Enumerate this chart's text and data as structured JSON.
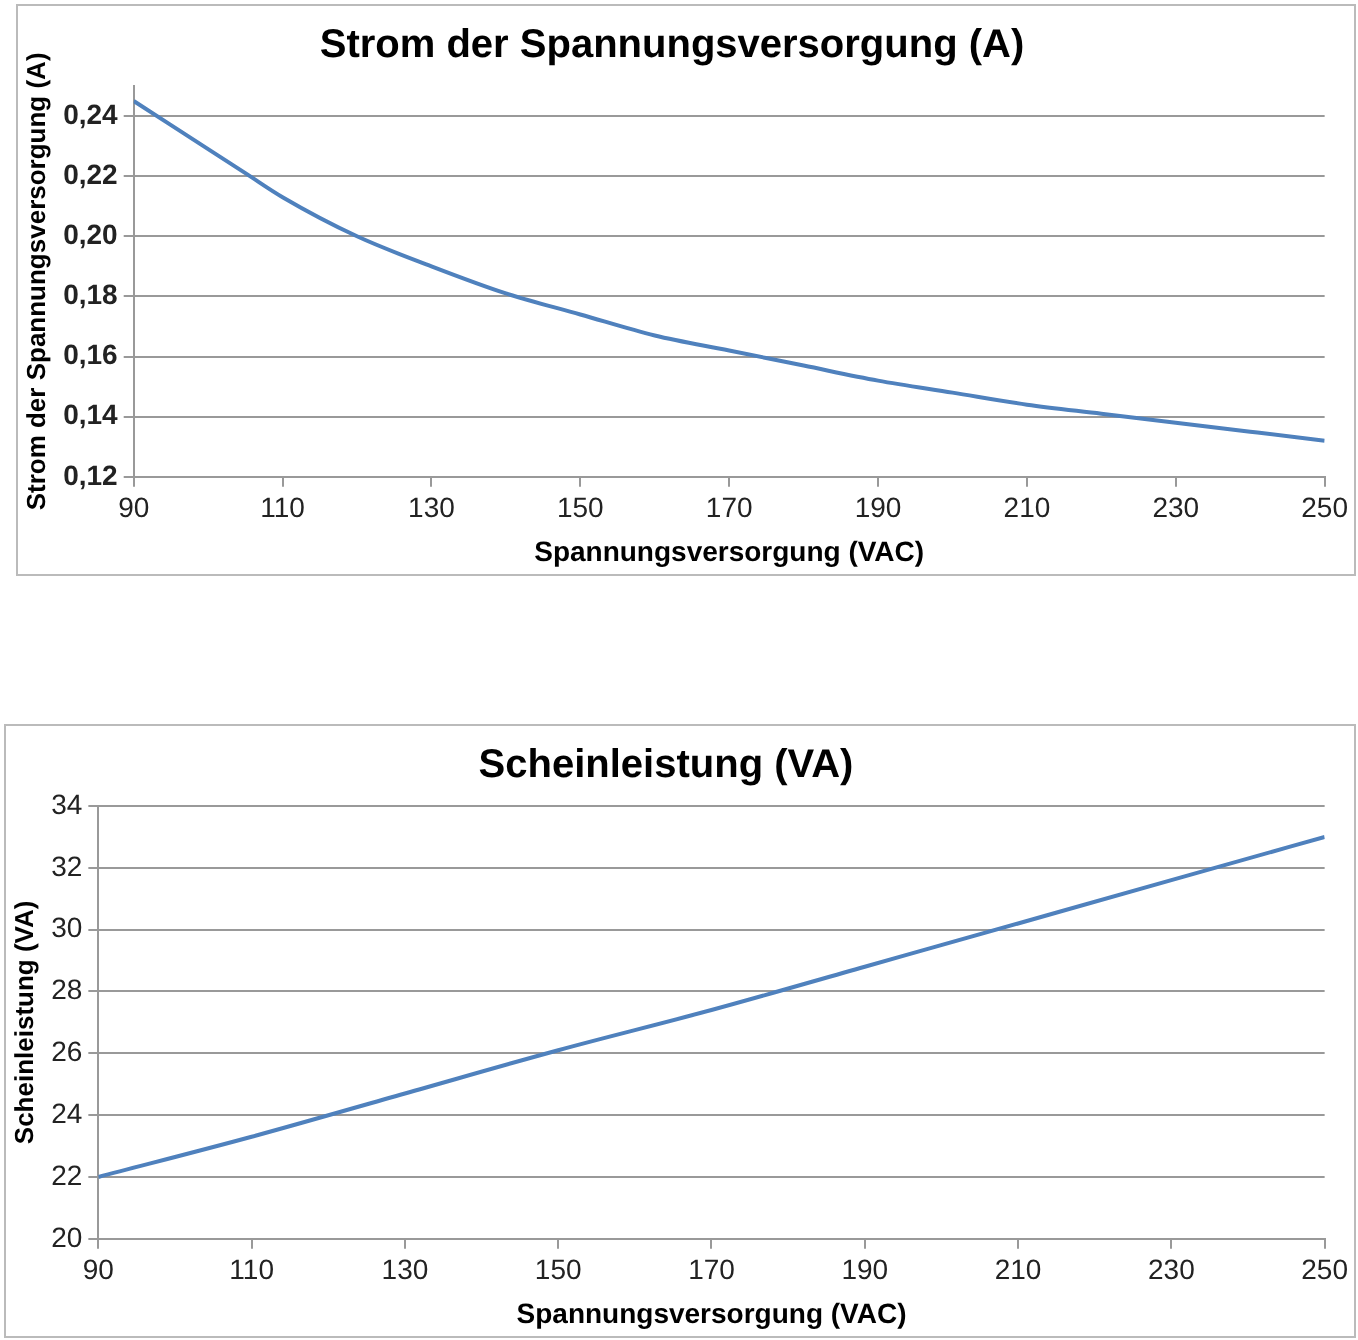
{
  "chart_data": [
    {
      "type": "line",
      "title": "Strom der Spannungsversorgung (A)",
      "xlabel": "Spannungsversorgung (VAC)",
      "ylabel": "Strom der Spannungsversorgung (A)",
      "x": [
        90,
        100,
        105,
        110,
        120,
        130,
        140,
        150,
        160,
        170,
        180,
        190,
        200,
        210,
        220,
        230,
        240,
        250
      ],
      "series": [
        {
          "color": "#4f81bd",
          "values": [
            0.245,
            0.229,
            0.221,
            0.213,
            0.2,
            0.19,
            0.181,
            0.174,
            0.167,
            0.162,
            0.157,
            0.152,
            0.148,
            0.144,
            0.141,
            0.138,
            0.135,
            0.132
          ]
        }
      ],
      "xlim": [
        90,
        250
      ],
      "xticks": [
        90,
        110,
        130,
        150,
        170,
        190,
        210,
        230,
        250
      ],
      "ylim": [
        0.12,
        0.25
      ],
      "yticks": [
        {
          "value": 0.12,
          "label": "0,12"
        },
        {
          "value": 0.14,
          "label": "0,14"
        },
        {
          "value": 0.16,
          "label": "0,16"
        },
        {
          "value": 0.18,
          "label": "0,18"
        },
        {
          "value": 0.2,
          "label": "0,20"
        },
        {
          "value": 0.22,
          "label": "0,22"
        },
        {
          "value": 0.24,
          "label": "0,24"
        }
      ],
      "grid": "y",
      "legend": false,
      "marker": "none",
      "line_style": "solid"
    },
    {
      "type": "line",
      "title": "Scheinleistung (VA)",
      "xlabel": "Spannungsversorgung (VAC)",
      "ylabel": "Scheinleistung (VA)",
      "x": [
        90,
        110,
        130,
        150,
        170,
        190,
        210,
        230,
        250
      ],
      "series": [
        {
          "color": "#4f81bd",
          "values": [
            22,
            23.3,
            24.7,
            26.1,
            27.4,
            28.8,
            30.2,
            31.6,
            33
          ]
        }
      ],
      "xlim": [
        90,
        250
      ],
      "xticks": [
        90,
        110,
        130,
        150,
        170,
        190,
        210,
        230,
        250
      ],
      "ylim": [
        20,
        34
      ],
      "yticks": [
        20,
        22,
        24,
        26,
        28,
        30,
        32,
        34
      ],
      "grid": "y",
      "legend": false,
      "marker": "none",
      "line_style": "solid"
    }
  ]
}
